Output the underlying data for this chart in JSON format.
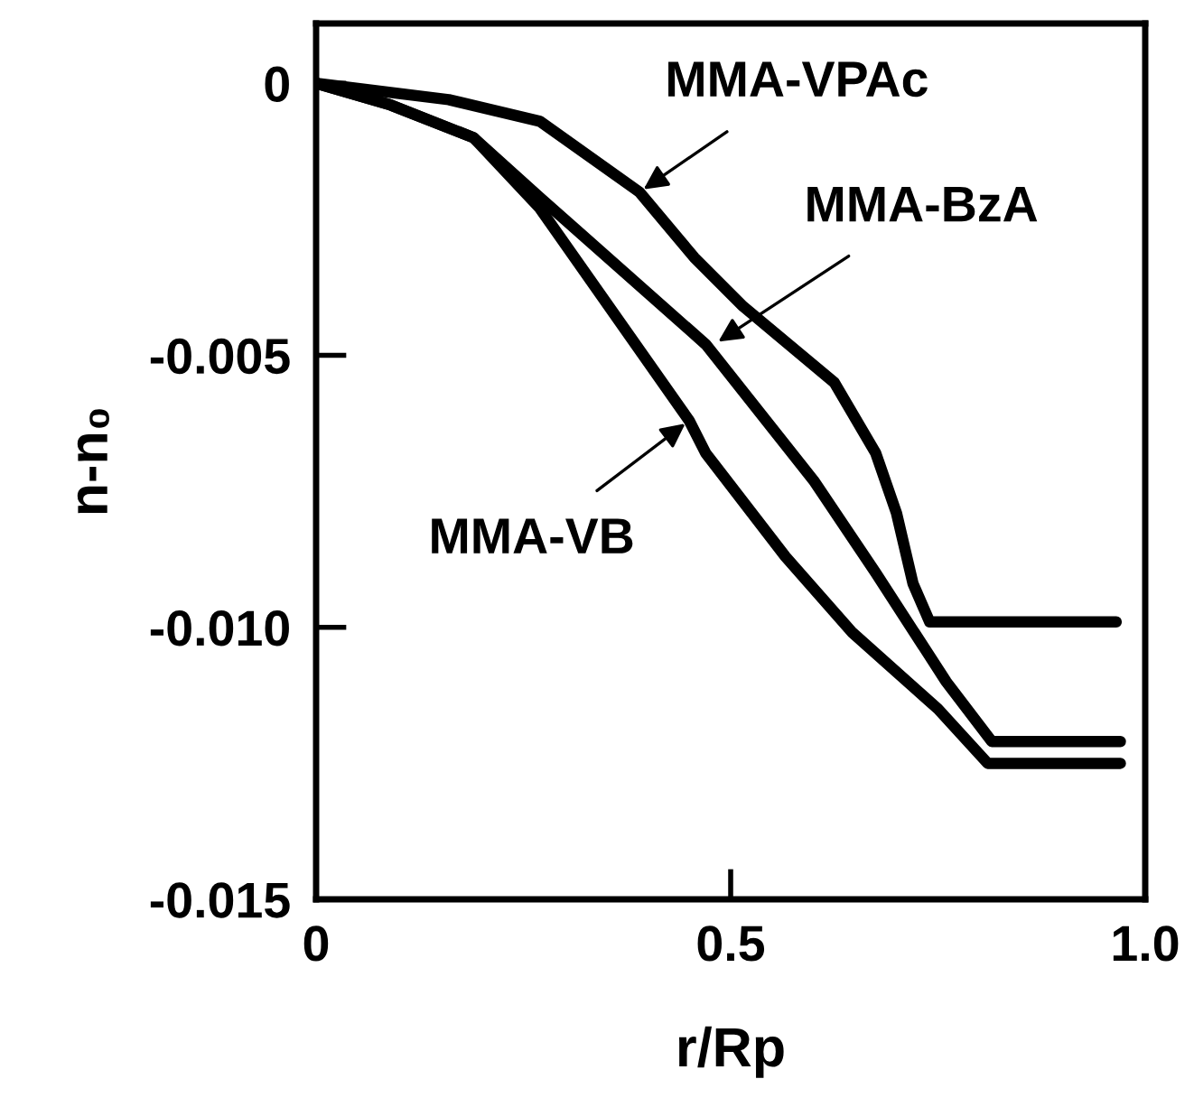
{
  "chart_data": {
    "type": "line",
    "xlabel": "r/Rp",
    "ylabel": "n-n₀",
    "xlim": [
      0,
      1.0
    ],
    "ylim": [
      -0.015,
      0.0011
    ],
    "xticks": [
      0,
      {
        "value": 0.5,
        "label": "0.5"
      },
      {
        "value": 1.0,
        "label": "1.0"
      }
    ],
    "yticks": [
      0,
      {
        "value": -0.005,
        "label": "-0.005"
      },
      {
        "value": -0.01,
        "label": "-0.010"
      },
      {
        "value": -0.015,
        "label": "-0.015"
      }
    ],
    "grid": false,
    "legend": false,
    "marker": "none",
    "line_style": "solid",
    "series": [
      {
        "color": "#000000",
        "x": [
          0,
          0.16,
          0.27,
          0.39,
          0.456,
          0.515,
          0.625,
          0.675,
          0.7,
          0.72,
          0.74,
          0.965
        ],
        "values": [
          0,
          -0.0003,
          -0.0007,
          -0.002,
          -0.0032,
          -0.0041,
          -0.0055,
          -0.0068,
          -0.0079,
          -0.0092,
          -0.0099,
          -0.0099
        ]
      },
      {
        "color": "#000000",
        "x": [
          0,
          0.09,
          0.19,
          0.27,
          0.47,
          0.6,
          0.675,
          0.76,
          0.815,
          0.97
        ],
        "values": [
          0,
          -0.0004,
          -0.001,
          -0.0021,
          -0.0048,
          -0.0073,
          -0.009,
          -0.011,
          -0.0121,
          -0.0121
        ]
      },
      {
        "color": "#000000",
        "x": [
          0,
          0.09,
          0.19,
          0.27,
          0.45,
          0.47,
          0.566,
          0.647,
          0.75,
          0.81,
          0.97
        ],
        "values": [
          0,
          -0.0004,
          -0.001,
          -0.0023,
          -0.0062,
          -0.0068,
          -0.0087,
          -0.0101,
          -0.0115,
          -0.0125,
          -0.0125
        ]
      }
    ],
    "annotations": [
      {
        "text": "MMA-VPAc",
        "x": 0.39,
        "y": -0.002
      },
      {
        "text": "MMA-BzA",
        "x": 0.48,
        "y": -0.0048
      },
      {
        "text": "MMA-VB",
        "x": 0.45,
        "y": -0.0062
      }
    ]
  }
}
